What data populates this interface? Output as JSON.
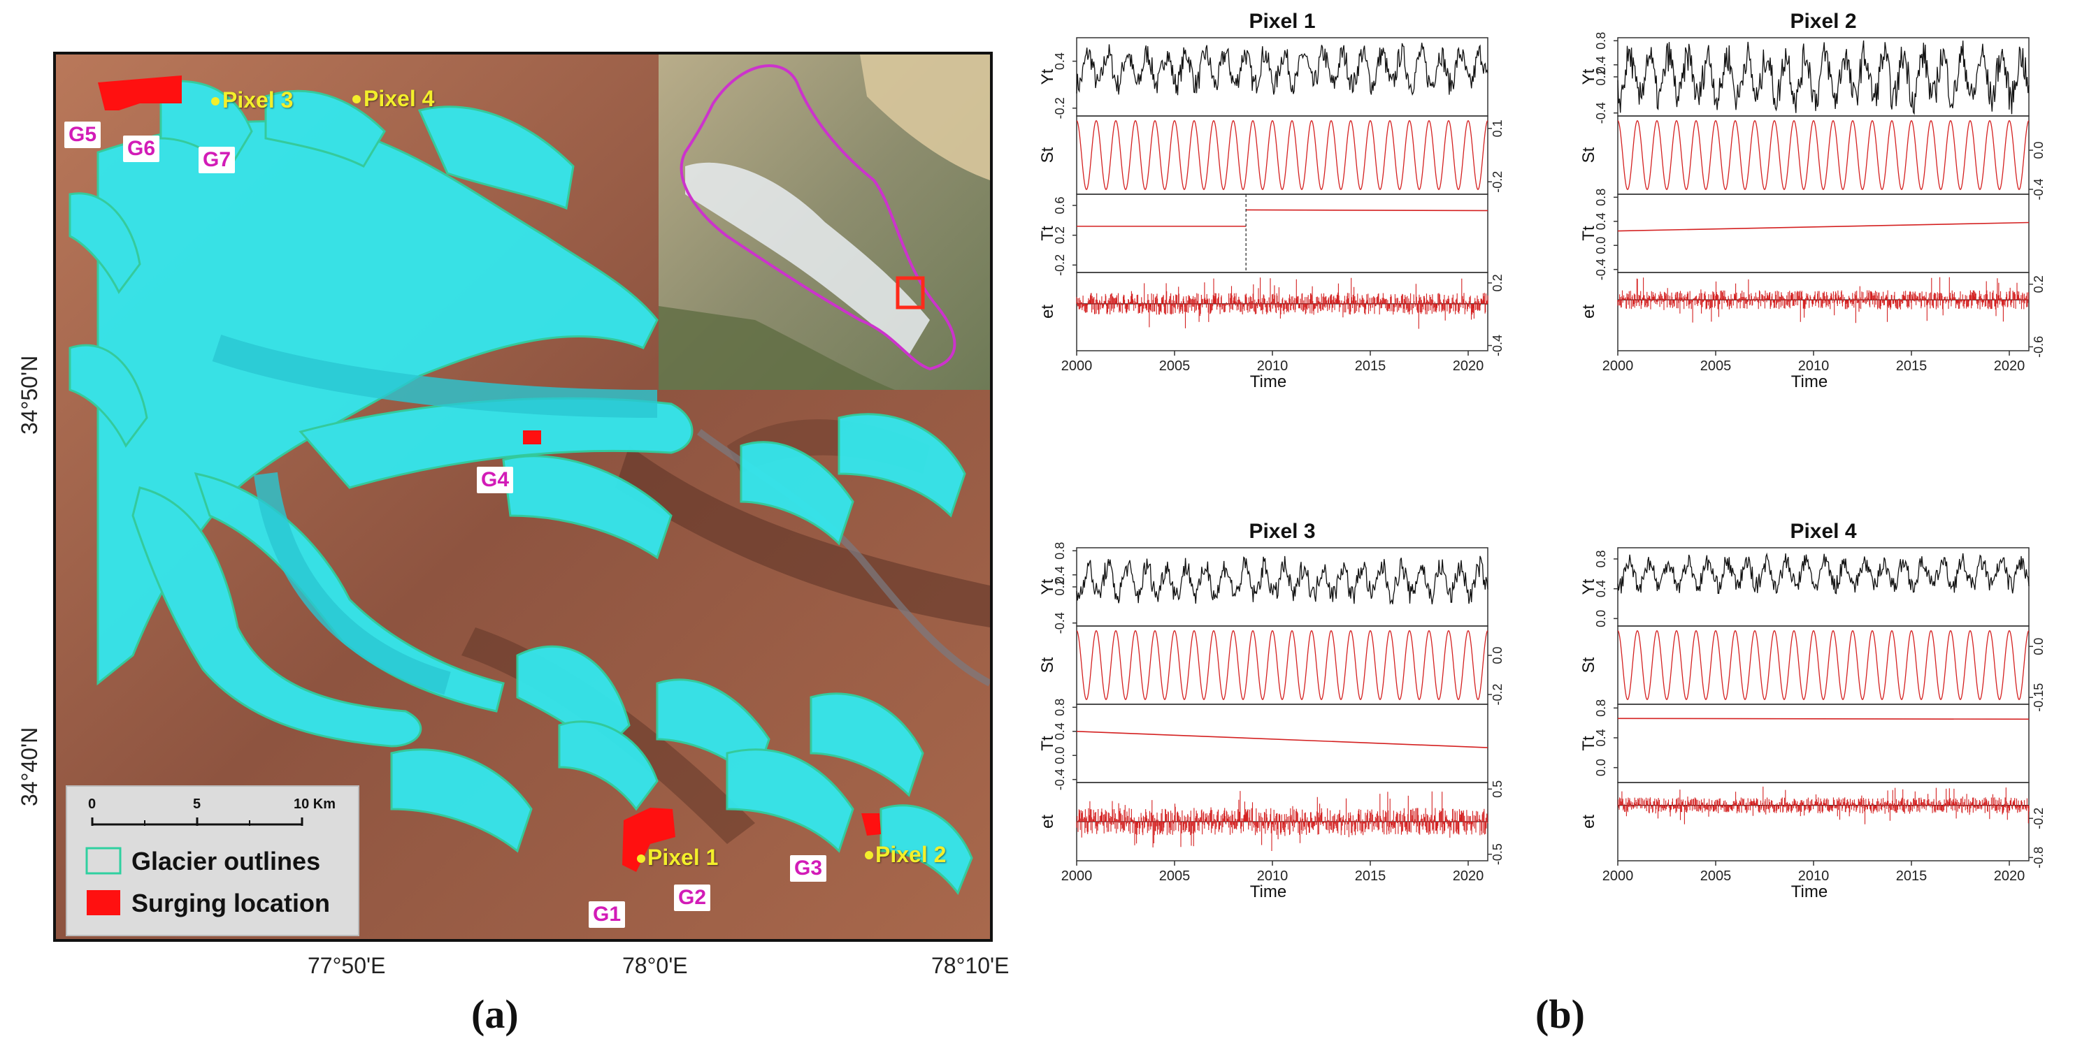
{
  "panel_a": {
    "letter": "(a)",
    "lat_labels": [
      "34°50'N",
      "34°40'N"
    ],
    "lon_labels": [
      "77°50'E",
      "78°0'E",
      "78°10'E"
    ],
    "glacier_labels": [
      "G1",
      "G2",
      "G3",
      "G4",
      "G5",
      "G6",
      "G7"
    ],
    "pixel_labels": [
      "Pixel 1",
      "Pixel 2",
      "Pixel 3",
      "Pixel 4"
    ],
    "scale_bar": {
      "ticks": [
        "0",
        "5",
        "10 Km"
      ]
    },
    "legend": {
      "glacier_outlines": "Glacier outlines",
      "surging_location": "Surging location"
    },
    "colors": {
      "glacier": "#33e8ee",
      "glacier_outline": "#2fd0a0",
      "terrain": "#9d5e47",
      "surging": "#ff1010",
      "label_text": "#d21bb7",
      "pixel_marker": "#f3ef2b",
      "study_area_outline": "#cc33cc"
    }
  },
  "panel_b": {
    "letter": "(b)",
    "time_label": "Time",
    "components": [
      "Yt",
      "St",
      "Tt",
      "et"
    ],
    "colors": {
      "observed": "#111111",
      "component": "#d42020"
    }
  },
  "chart_data": [
    {
      "type": "line",
      "title": "Pixel 1",
      "xlabel": "Time",
      "xlim": [
        2000,
        2021
      ],
      "xticks": [
        2000,
        2005,
        2010,
        2015,
        2020
      ],
      "panels": [
        {
          "name": "Yt",
          "ylim": [
            -0.3,
            0.7
          ],
          "yticks": [
            -0.2,
            0.4
          ],
          "yticks_side": "left",
          "mean": 0.3,
          "amplitude": 0.25
        },
        {
          "name": "St",
          "ylim": [
            -0.27,
            0.17
          ],
          "yticks": [
            -0.2,
            0.1
          ],
          "yticks_side": "right",
          "cycles_per_year": 1
        },
        {
          "name": "Tt",
          "ylim": [
            -0.3,
            0.75
          ],
          "yticks": [
            -0.2,
            0.2,
            0.6
          ],
          "yticks_side": "left",
          "segments": [
            {
              "x": [
                2000,
                2008.65
              ],
              "y": [
                0.32,
                0.32
              ]
            },
            {
              "x": [
                2008.65,
                2021
              ],
              "y": [
                0.54,
                0.53
              ]
            }
          ],
          "breakpoint": 2008.65
        },
        {
          "name": "et",
          "ylim": [
            -0.45,
            0.3
          ],
          "yticks": [
            -0.4,
            0.2
          ],
          "yticks_side": "right"
        }
      ]
    },
    {
      "type": "line",
      "title": "Pixel 2",
      "xlabel": "Time",
      "xlim": [
        2000,
        2021
      ],
      "xticks": [
        2000,
        2005,
        2010,
        2015,
        2020
      ],
      "panels": [
        {
          "name": "Yt",
          "ylim": [
            -0.45,
            0.85
          ],
          "yticks": [
            -0.4,
            0.2,
            0.4,
            0.8
          ],
          "yticks_side": "left",
          "mean": 0.2,
          "amplitude": 0.45
        },
        {
          "name": "St",
          "ylim": [
            -0.45,
            0.35
          ],
          "yticks": [
            -0.4,
            0.0
          ],
          "yticks_side": "right",
          "cycles_per_year": 1
        },
        {
          "name": "Tt",
          "ylim": [
            -0.45,
            0.85
          ],
          "yticks": [
            -0.4,
            0.0,
            0.4,
            0.8
          ],
          "yticks_side": "left",
          "segments": [
            {
              "x": [
                2000,
                2021
              ],
              "y": [
                0.24,
                0.38
              ]
            }
          ]
        },
        {
          "name": "et",
          "ylim": [
            -0.65,
            0.35
          ],
          "yticks": [
            -0.6,
            0.2
          ],
          "yticks_side": "right"
        }
      ]
    },
    {
      "type": "line",
      "title": "Pixel 3",
      "xlabel": "Time",
      "xlim": [
        2000,
        2021
      ],
      "xticks": [
        2000,
        2005,
        2010,
        2015,
        2020
      ],
      "panels": [
        {
          "name": "Yt",
          "ylim": [
            -0.45,
            0.85
          ],
          "yticks": [
            -0.4,
            0.2,
            0.4,
            0.8
          ],
          "yticks_side": "left",
          "mean": 0.3,
          "amplitude": 0.3
        },
        {
          "name": "St",
          "ylim": [
            -0.25,
            0.15
          ],
          "yticks": [
            -0.2,
            0.0
          ],
          "yticks_side": "right",
          "cycles_per_year": 1
        },
        {
          "name": "Tt",
          "ylim": [
            -0.45,
            0.85
          ],
          "yticks": [
            -0.4,
            0.0,
            0.4,
            0.8
          ],
          "yticks_side": "left",
          "segments": [
            {
              "x": [
                2000,
                2021
              ],
              "y": [
                0.4,
                0.13
              ]
            }
          ]
        },
        {
          "name": "et",
          "ylim": [
            -0.6,
            0.6
          ],
          "yticks": [
            -0.5,
            0.5
          ],
          "yticks_side": "right"
        }
      ]
    },
    {
      "type": "line",
      "title": "Pixel 4",
      "xlabel": "Time",
      "xlim": [
        2000,
        2021
      ],
      "xticks": [
        2000,
        2005,
        2010,
        2015,
        2020
      ],
      "panels": [
        {
          "name": "Yt",
          "ylim": [
            -0.1,
            0.95
          ],
          "yticks": [
            0.0,
            0.4,
            0.8
          ],
          "yticks_side": "left",
          "mean": 0.6,
          "amplitude": 0.2
        },
        {
          "name": "St",
          "ylim": [
            -0.17,
            0.06
          ],
          "yticks": [
            -0.15,
            0.0
          ],
          "yticks_side": "right",
          "cycles_per_year": 1
        },
        {
          "name": "Tt",
          "ylim": [
            -0.2,
            0.85
          ],
          "yticks": [
            0.0,
            0.4,
            0.8
          ],
          "yticks_side": "left",
          "segments": [
            {
              "x": [
                2000,
                2021
              ],
              "y": [
                0.66,
                0.65
              ]
            }
          ]
        },
        {
          "name": "et",
          "ylim": [
            -0.85,
            0.35
          ],
          "yticks": [
            -0.8,
            -0.2
          ],
          "yticks_side": "right"
        }
      ]
    }
  ]
}
